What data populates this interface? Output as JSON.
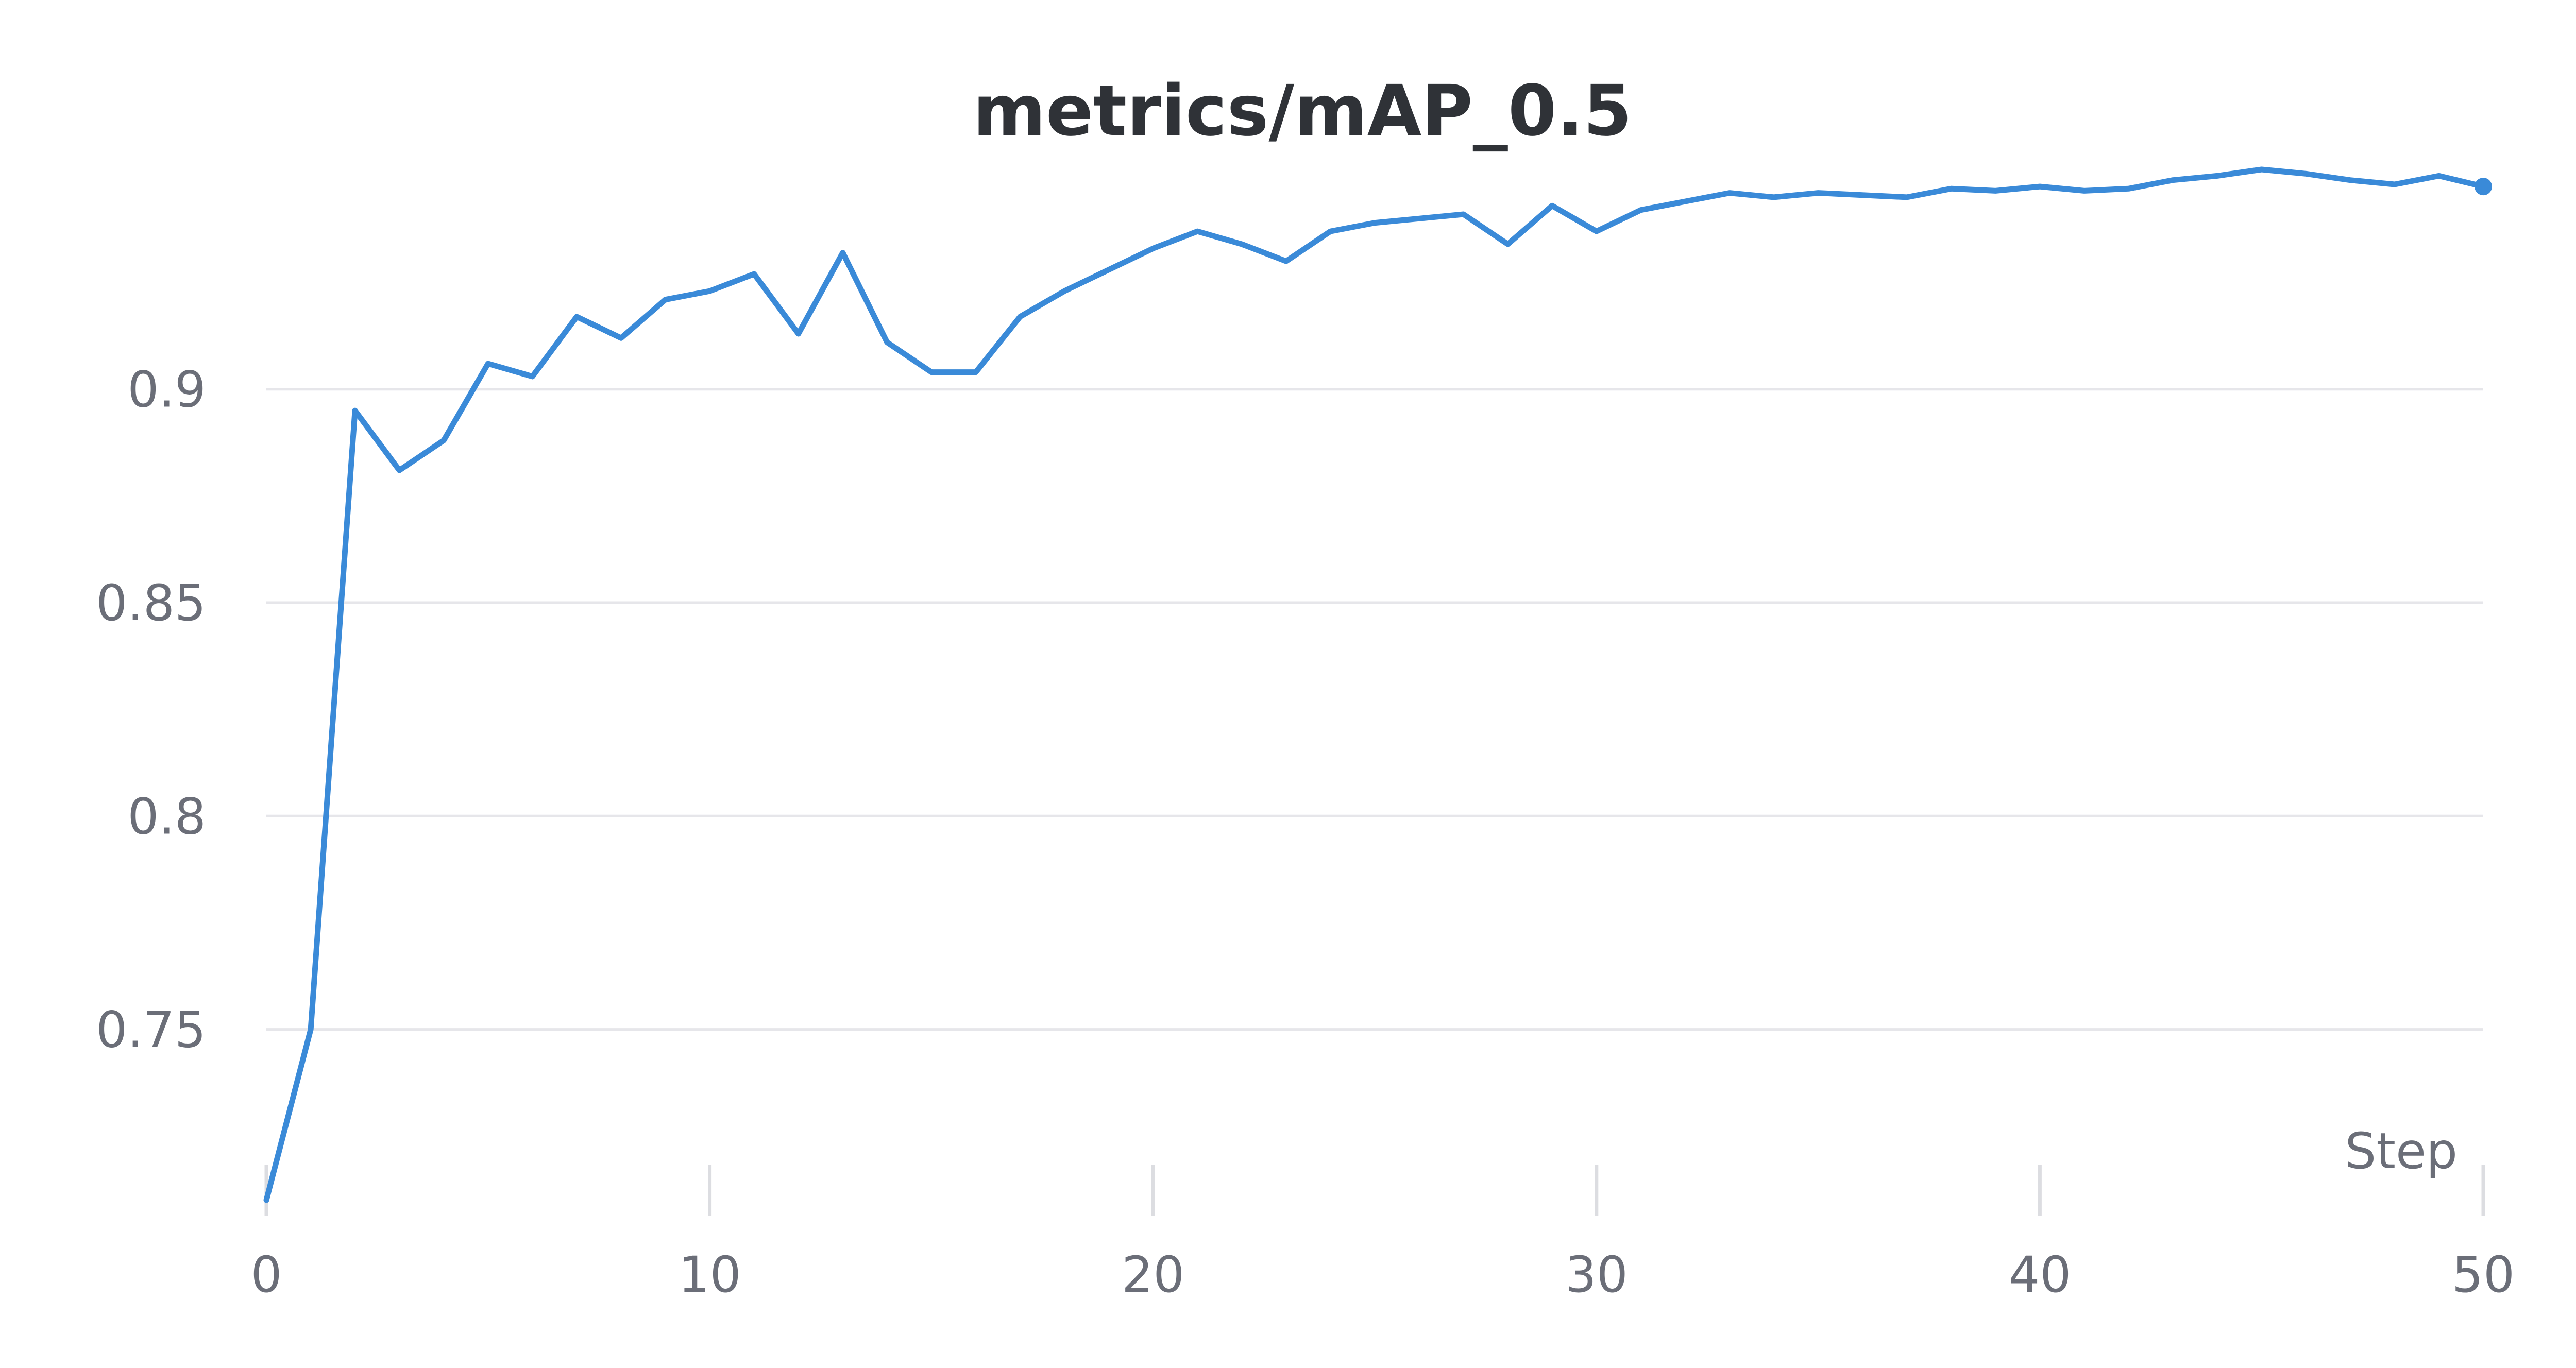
{
  "chart_data": {
    "type": "line",
    "title": "metrics/mAP_0.5",
    "xlabel": "Step",
    "ylabel": "",
    "xlim": [
      0,
      50
    ],
    "ylim": [
      0.71,
      0.955
    ],
    "x_ticks": [
      0,
      10,
      20,
      30,
      40,
      50
    ],
    "y_ticks": [
      0.75,
      0.8,
      0.85,
      0.9
    ],
    "x_tick_labels": [
      "0",
      "10",
      "20",
      "30",
      "40",
      "50"
    ],
    "y_tick_labels": [
      "0.75",
      "0.8",
      "0.85",
      "0.9"
    ],
    "grid": "horizontal",
    "series": [
      {
        "color": "#3a8ad8",
        "x": [
          0,
          1,
          2,
          3,
          4,
          5,
          6,
          7,
          8,
          9,
          10,
          11,
          12,
          13,
          14,
          15,
          16,
          17,
          18,
          19,
          20,
          21,
          22,
          23,
          24,
          25,
          26,
          27,
          28,
          29,
          30,
          31,
          32,
          33,
          34,
          35,
          36,
          37,
          38,
          39,
          40,
          41,
          42,
          43,
          44,
          45,
          46,
          47,
          48,
          49,
          50
        ],
        "values": [
          0.71,
          0.75,
          0.895,
          0.881,
          0.888,
          0.906,
          0.903,
          0.917,
          0.912,
          0.921,
          0.923,
          0.927,
          0.913,
          0.932,
          0.911,
          0.904,
          0.904,
          0.917,
          0.923,
          0.928,
          0.933,
          0.937,
          0.934,
          0.93,
          0.937,
          0.939,
          0.94,
          0.941,
          0.934,
          0.943,
          0.937,
          0.942,
          0.944,
          0.946,
          0.945,
          0.946,
          0.9455,
          0.945,
          0.947,
          0.9465,
          0.9475,
          0.9465,
          0.947,
          0.949,
          0.95,
          0.9515,
          0.9505,
          0.949,
          0.948,
          0.95,
          0.9475
        ],
        "end_marker": true
      }
    ]
  }
}
